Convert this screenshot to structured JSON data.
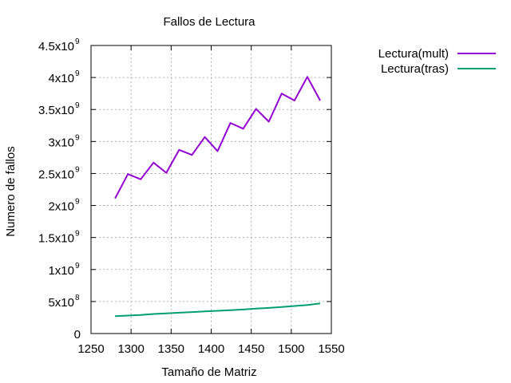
{
  "chart_data": {
    "type": "line",
    "title": "Fallos de Lectura",
    "xlabel": "Tamaño de Matriz",
    "ylabel": "Numero de fallos",
    "xlim": [
      1250,
      1550
    ],
    "ylim": [
      0,
      4500000000
    ],
    "grid": true,
    "legend_position": "top-right outside",
    "x_ticks": [
      {
        "value": 1250,
        "label": "1250"
      },
      {
        "value": 1300,
        "label": "1300"
      },
      {
        "value": 1350,
        "label": "1350"
      },
      {
        "value": 1400,
        "label": "1400"
      },
      {
        "value": 1450,
        "label": "1450"
      },
      {
        "value": 1500,
        "label": "1500"
      },
      {
        "value": 1550,
        "label": "1550"
      }
    ],
    "y_ticks": [
      {
        "value": 0,
        "mantissa": "0",
        "exponent": ""
      },
      {
        "value": 500000000,
        "mantissa": "5x10",
        "exponent": "8"
      },
      {
        "value": 1000000000,
        "mantissa": "1x10",
        "exponent": "9"
      },
      {
        "value": 1500000000,
        "mantissa": "1.5x10",
        "exponent": "9"
      },
      {
        "value": 2000000000,
        "mantissa": "2x10",
        "exponent": "9"
      },
      {
        "value": 2500000000,
        "mantissa": "2.5x10",
        "exponent": "9"
      },
      {
        "value": 3000000000,
        "mantissa": "3x10",
        "exponent": "9"
      },
      {
        "value": 3500000000,
        "mantissa": "3.5x10",
        "exponent": "9"
      },
      {
        "value": 4000000000,
        "mantissa": "4x10",
        "exponent": "9"
      },
      {
        "value": 4500000000,
        "mantissa": "4.5x10",
        "exponent": "9"
      }
    ],
    "x": [
      1280,
      1296,
      1312,
      1328,
      1344,
      1360,
      1376,
      1392,
      1408,
      1424,
      1440,
      1456,
      1472,
      1488,
      1504,
      1520,
      1536
    ],
    "series": [
      {
        "name": "Lectura(mult)",
        "color": "#9400d3",
        "values": [
          2110000000,
          2490000000,
          2410000000,
          2670000000,
          2510000000,
          2870000000,
          2790000000,
          3070000000,
          2850000000,
          3290000000,
          3200000000,
          3510000000,
          3310000000,
          3750000000,
          3640000000,
          4010000000,
          3640000000
        ]
      },
      {
        "name": "Lectura(tras)",
        "color": "#009e73",
        "values": [
          270000000,
          280000000,
          290000000,
          305000000,
          315000000,
          325000000,
          335000000,
          345000000,
          355000000,
          365000000,
          375000000,
          390000000,
          400000000,
          415000000,
          430000000,
          445000000,
          470000000
        ]
      }
    ]
  }
}
